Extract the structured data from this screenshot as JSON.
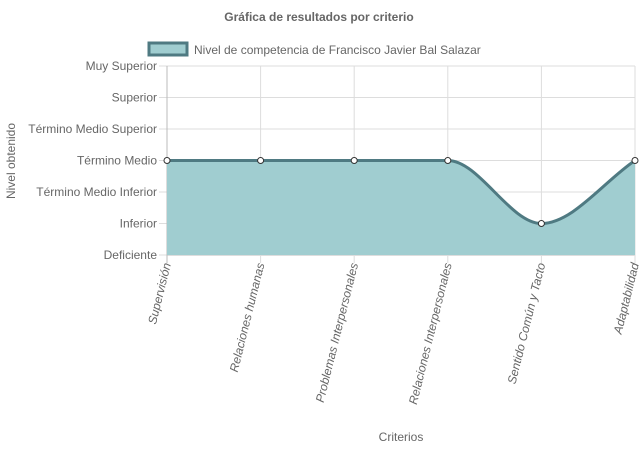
{
  "chart_data": {
    "type": "area",
    "title": "Gráfica de resultados por criterio",
    "xlabel": "Criterios",
    "ylabel": "Nivel obtenido",
    "y_categories": [
      "Deficiente",
      "Inferior",
      "Término Medio Inferior",
      "Término Medio",
      "Término Medio Superior",
      "Superior",
      "Muy Superior"
    ],
    "categories": [
      "Supervisión",
      "Relaciones humanas",
      "Problemas Interpersonales",
      "Relaciones Interpersonales",
      "Sentido Común y Tacto",
      "Adaptabilidad"
    ],
    "series": [
      {
        "name": "Nivel de competencia de Francisco Javier Bal Salazar",
        "values": [
          "Término Medio",
          "Término Medio",
          "Término Medio",
          "Término Medio",
          "Inferior",
          "Término Medio"
        ]
      }
    ],
    "legend_position": "top",
    "grid": true,
    "colors": {
      "fill": "#a0cdd0",
      "line": "#4f7a82",
      "grid": "#dddddd",
      "text": "#666666"
    }
  }
}
